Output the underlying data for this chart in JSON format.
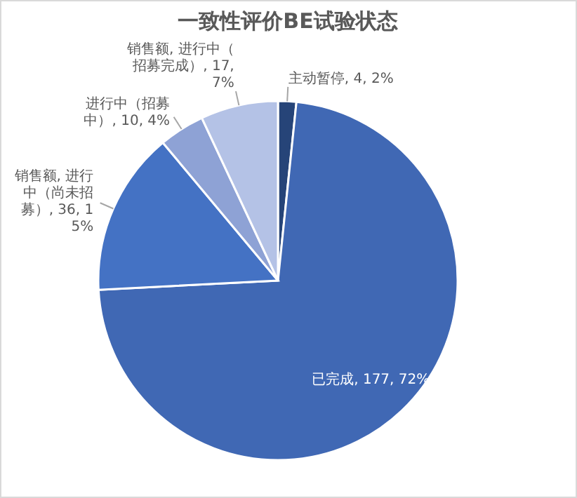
{
  "chart_data": {
    "type": "pie",
    "title": "一致性评价BE试验状态",
    "categories": [
      "主动暂停",
      "已完成",
      "销售额, 进行中（尚未招募）",
      "进行中（招募中）",
      "销售额, 进行中（招募完成）"
    ],
    "values": [
      4,
      177,
      36,
      10,
      17
    ],
    "value_labels": [
      "4, 2%",
      "177, 72%",
      "36, 15%",
      "10, 4%",
      "17, 7%"
    ],
    "colors": [
      "#264478",
      "#4068b4",
      "#4472c4",
      "#8ea2d5",
      "#b4c2e6"
    ]
  }
}
